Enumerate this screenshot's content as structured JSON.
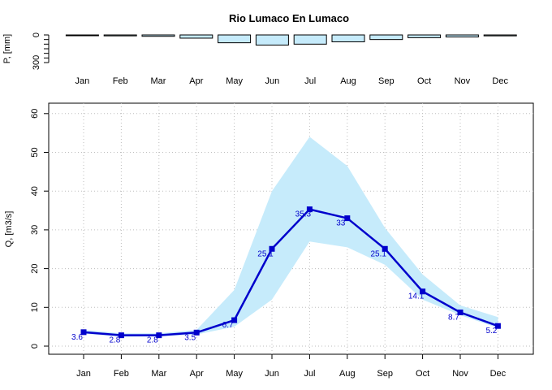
{
  "chart_data": [
    {
      "type": "bar",
      "title": "Rio Lumaco En Lumaco",
      "ylabel": "P, [mm]",
      "categories": [
        "Jan",
        "Feb",
        "Mar",
        "Apr",
        "May",
        "Jun",
        "Jul",
        "Aug",
        "Sep",
        "Oct",
        "Nov",
        "Dec"
      ],
      "values": [
        3,
        10,
        15,
        35,
        85,
        110,
        100,
        75,
        50,
        30,
        22,
        10
      ],
      "ylim": [
        0,
        300
      ],
      "yticks": [
        "0",
        "300"
      ],
      "inverted": true,
      "colors": {
        "bar_fill": "#c6ebfb",
        "bar_stroke": "#000000"
      }
    },
    {
      "type": "line",
      "ylabel": "Q, [m3/s]",
      "categories": [
        "Jan",
        "Feb",
        "Mar",
        "Apr",
        "May",
        "Jun",
        "Jul",
        "Aug",
        "Sep",
        "Oct",
        "Nov",
        "Dec"
      ],
      "ylim": [
        0,
        60
      ],
      "yticks": [
        "0",
        "10",
        "20",
        "30",
        "40",
        "50",
        "60"
      ],
      "grid": true,
      "series": [
        {
          "values": [
            3.6,
            2.8,
            2.8,
            3.5,
            6.7,
            25.1,
            35.3,
            33,
            25.1,
            14.1,
            8.7,
            5.2
          ],
          "labels": [
            "3.6",
            "2.8",
            "2.8",
            "3.5",
            "6.7",
            "25.1",
            "35.3",
            "33",
            "25.1",
            "14.1",
            "8.7",
            "5.2"
          ],
          "color": "#0000cc"
        }
      ],
      "band": {
        "upper": [
          4.2,
          3.3,
          3.3,
          4.2,
          14.5,
          40,
          54,
          46.5,
          30.5,
          18.5,
          10.5,
          7.5
        ],
        "lower": [
          3.2,
          2.4,
          2.5,
          3.0,
          5.0,
          12,
          27,
          25.5,
          21,
          12,
          8,
          4.7
        ],
        "color": "#c6ebfb"
      }
    }
  ]
}
